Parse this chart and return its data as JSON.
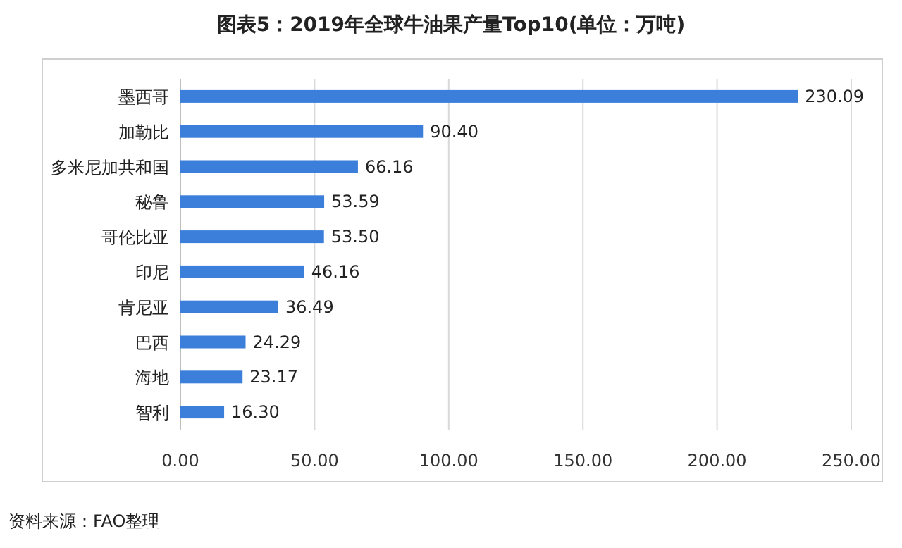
{
  "chart_data": {
    "type": "bar",
    "orientation": "horizontal",
    "title": "图表5：2019年全球牛油果产量Top10(单位：万吨)",
    "categories": [
      "墨西哥",
      "加勒比",
      "多米尼加共和国",
      "秘鲁",
      "哥伦比亚",
      "印尼",
      "肯尼亚",
      "巴西",
      "海地",
      "智利"
    ],
    "values": [
      230.09,
      90.4,
      66.16,
      53.59,
      53.5,
      46.16,
      36.49,
      24.29,
      23.17,
      16.3
    ],
    "value_labels": [
      "230.09",
      "90.40",
      "66.16",
      "53.59",
      "53.50",
      "46.16",
      "36.49",
      "24.29",
      "23.17",
      "16.30"
    ],
    "color": "#3b7fdb",
    "xlim": [
      0,
      250
    ],
    "xticks": [
      {
        "value": 0,
        "label": "0.00"
      },
      {
        "value": 50,
        "label": "50.00"
      },
      {
        "value": 100,
        "label": "100.00"
      },
      {
        "value": 150,
        "label": "150.00"
      },
      {
        "value": 200,
        "label": "200.00"
      },
      {
        "value": 250,
        "label": "250.00"
      }
    ],
    "grid": "x",
    "annotations": [
      "资料来源：FAO整理"
    ]
  }
}
